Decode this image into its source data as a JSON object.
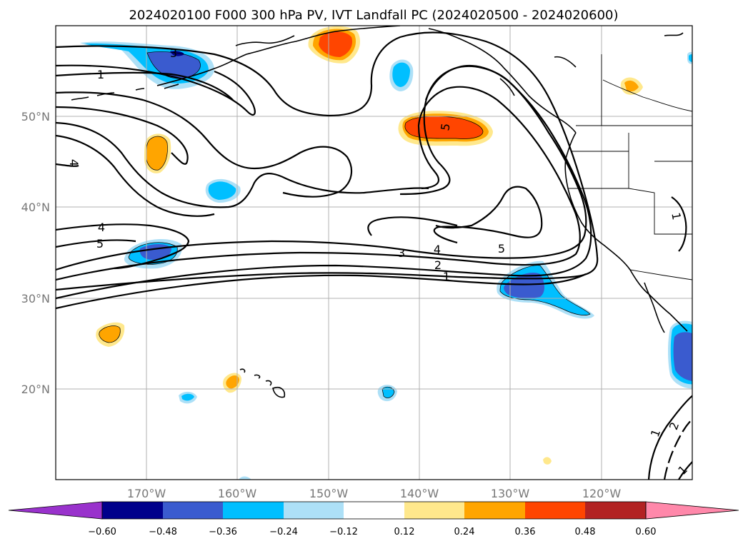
{
  "title": "2024020100 F000 300 hPa PV, IVT Landfall PC (2024020500 - 2024020600)",
  "map_data": {
    "lon_ticks": [
      "170°W",
      "160°W",
      "150°W",
      "140°W",
      "130°W",
      "120°W"
    ],
    "lat_ticks": [
      "50°N",
      "40°N",
      "30°N",
      "20°N"
    ],
    "contour_labels": [
      "1",
      "2",
      "3",
      "4",
      "5"
    ],
    "colorbar": {
      "tick_labels": [
        "−0.60",
        "−0.48",
        "−0.36",
        "−0.24",
        "−0.12",
        "0.12",
        "0.24",
        "0.36",
        "0.48",
        "0.60"
      ],
      "colors": [
        "#9932CC",
        "#00008B",
        "#3A5BCF",
        "#00BFFF",
        "#ADE0F7",
        "#FFFFFF",
        "#FFE88C",
        "#FFA500",
        "#FF4500",
        "#B22222",
        "#FF88AA"
      ]
    }
  }
}
